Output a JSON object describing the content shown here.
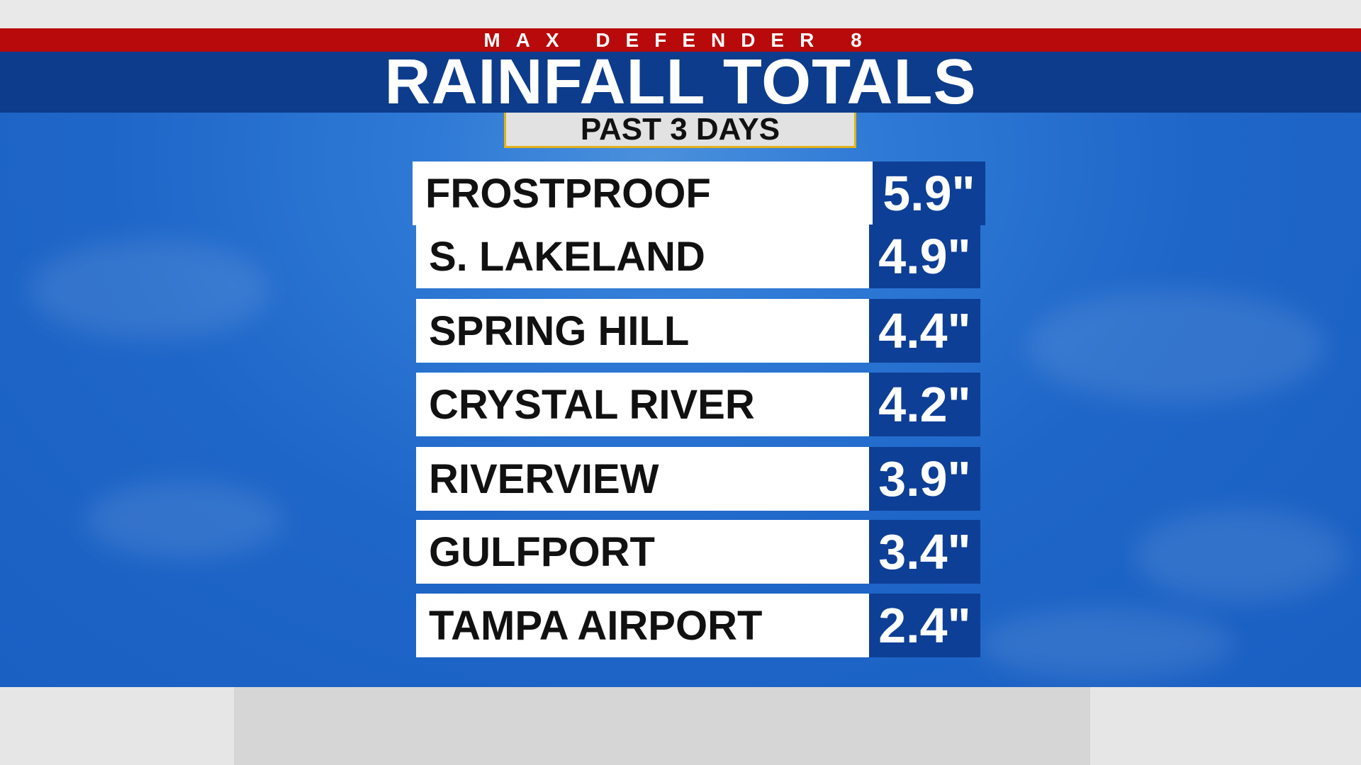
{
  "header": {
    "brand": "MAX DEFENDER 8",
    "title": "RAINFALL TOTALS",
    "period": "PAST 3 DAYS"
  },
  "colors": {
    "brand_bar": "#b80a0a",
    "title_bar": "#0d3c8c",
    "sky": "#1e66c8",
    "value_box": "#0e3f96",
    "name_box": "#ffffff",
    "period_border": "#e0b21a"
  },
  "rainfall": [
    {
      "location": "FROSTPROOF",
      "amount": "5.9\""
    },
    {
      "location": "S. LAKELAND",
      "amount": "4.9\""
    },
    {
      "location": "SPRING HILL",
      "amount": "4.4\""
    },
    {
      "location": "CRYSTAL RIVER",
      "amount": "4.2\""
    },
    {
      "location": "RIVERVIEW",
      "amount": "3.9\""
    },
    {
      "location": "GULFPORT",
      "amount": "3.4\""
    },
    {
      "location": "TAMPA AIRPORT",
      "amount": "2.4\""
    }
  ]
}
